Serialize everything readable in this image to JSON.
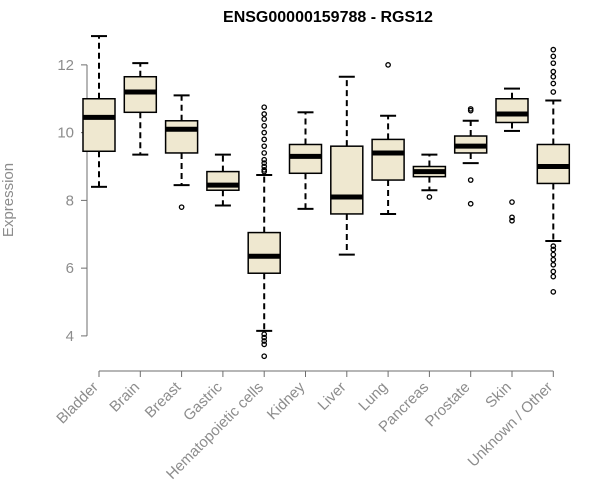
{
  "chart_data": {
    "type": "boxplot",
    "title": "ENSG00000159788 - RGS12",
    "xlabel": "",
    "ylabel": "Expression",
    "ylim": [
      3.2,
      13.0
    ],
    "yticks": [
      4,
      6,
      8,
      10,
      12
    ],
    "box_fill": "#efe8d0",
    "box_stroke": "#000000",
    "median_color": "#000000",
    "categories": [
      "Bladder",
      "Brain",
      "Breast",
      "Gastric",
      "Hematopoietic cells",
      "Kidney",
      "Liver",
      "Lung",
      "Pancreas",
      "Prostate",
      "Skin",
      "Unknown / Other"
    ],
    "boxes": [
      {
        "name": "Bladder",
        "min": 8.4,
        "q1": 9.45,
        "median": 10.45,
        "q3": 11.0,
        "max": 12.85,
        "outliers": []
      },
      {
        "name": "Brain",
        "min": 9.35,
        "q1": 10.6,
        "median": 11.2,
        "q3": 11.65,
        "max": 12.05,
        "outliers": []
      },
      {
        "name": "Breast",
        "min": 8.45,
        "q1": 9.4,
        "median": 10.1,
        "q3": 10.35,
        "max": 11.1,
        "outliers": [
          7.8
        ]
      },
      {
        "name": "Gastric",
        "min": 7.85,
        "q1": 8.3,
        "median": 8.45,
        "q3": 8.85,
        "max": 9.35,
        "outliers": []
      },
      {
        "name": "Hematopoietic cells",
        "min": 4.15,
        "q1": 5.85,
        "median": 6.35,
        "q3": 7.05,
        "max": 8.75,
        "outliers": [
          3.4,
          3.75,
          3.85,
          3.95,
          4.05,
          8.85,
          8.9,
          9.0,
          9.1,
          9.2,
          9.4,
          9.6,
          9.8,
          10.0,
          10.2,
          10.4,
          10.55,
          10.75
        ]
      },
      {
        "name": "Kidney",
        "min": 7.75,
        "q1": 8.8,
        "median": 9.3,
        "q3": 9.65,
        "max": 10.6,
        "outliers": []
      },
      {
        "name": "Liver",
        "min": 6.4,
        "q1": 7.6,
        "median": 8.1,
        "q3": 9.6,
        "max": 11.65,
        "outliers": []
      },
      {
        "name": "Lung",
        "min": 7.6,
        "q1": 8.6,
        "median": 9.4,
        "q3": 9.8,
        "max": 10.5,
        "outliers": [
          12.0
        ]
      },
      {
        "name": "Pancreas",
        "min": 8.3,
        "q1": 8.7,
        "median": 8.85,
        "q3": 9.0,
        "max": 9.35,
        "outliers": [
          8.1
        ]
      },
      {
        "name": "Prostate",
        "min": 9.1,
        "q1": 9.4,
        "median": 9.6,
        "q3": 9.9,
        "max": 10.35,
        "outliers": [
          7.9,
          8.6,
          10.65,
          10.7
        ]
      },
      {
        "name": "Skin",
        "min": 10.05,
        "q1": 10.3,
        "median": 10.55,
        "q3": 11.0,
        "max": 11.3,
        "outliers": [
          7.4,
          7.5,
          7.95
        ]
      },
      {
        "name": "Unknown / Other",
        "min": 6.8,
        "q1": 8.5,
        "median": 9.0,
        "q3": 9.65,
        "max": 10.95,
        "outliers": [
          5.3,
          5.75,
          5.9,
          6.1,
          6.25,
          6.4,
          6.55,
          6.65,
          11.2,
          11.45,
          11.65,
          11.8,
          12.05,
          12.25,
          12.45
        ]
      }
    ]
  }
}
